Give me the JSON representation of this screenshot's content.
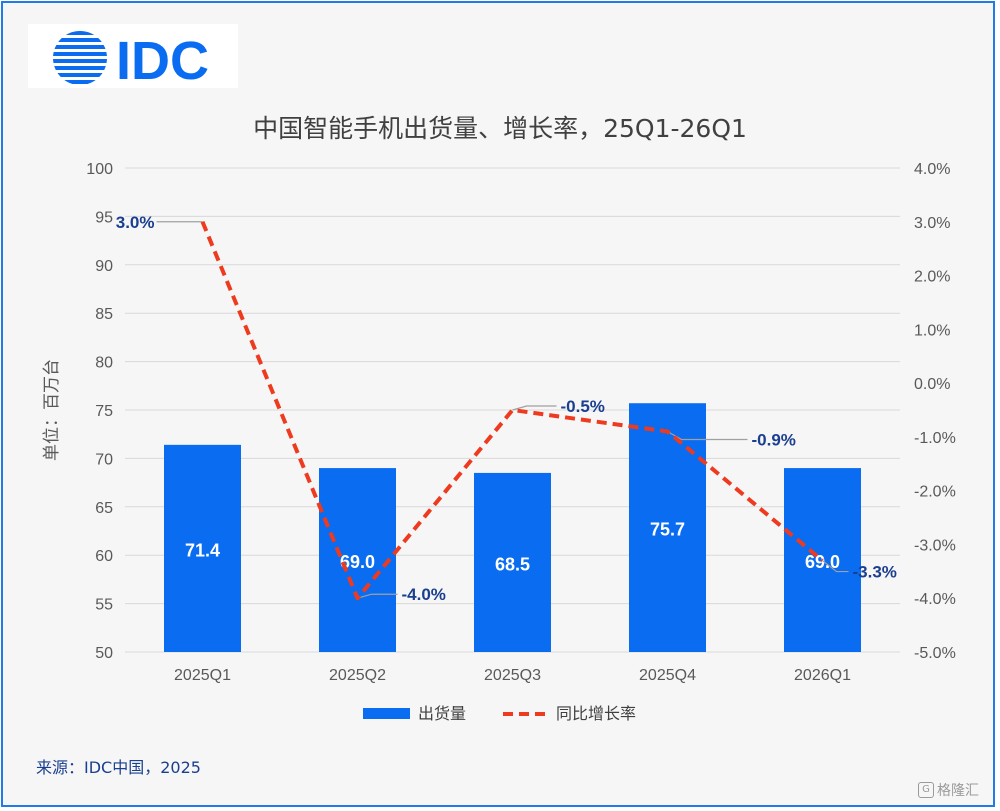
{
  "logo": {
    "text": "IDC"
  },
  "source": "来源：IDC中国，2025",
  "watermark": "格隆汇",
  "colors": {
    "bar": "#0a6cf0",
    "line": "#ee3a1e",
    "label_dark": "#1a3f8f",
    "grid": "#d9d9d9",
    "axis_text": "#595959",
    "frame": "#1f7be8"
  },
  "chart_data": {
    "type": "bar+line",
    "title": "中国智能手机出货量、增长率，25Q1-26Q1",
    "ylabel": "单位：百万台",
    "categories": [
      "2025Q1",
      "2025Q2",
      "2025Q3",
      "2025Q4",
      "2026Q1"
    ],
    "ylim": [
      50,
      100
    ],
    "y_ticks": [
      "100",
      "95",
      "90",
      "85",
      "80",
      "75",
      "70",
      "65",
      "60",
      "55",
      "50"
    ],
    "y2lim": [
      -5.0,
      4.0
    ],
    "y2_ticks": [
      "4.0%",
      "3.0%",
      "2.0%",
      "1.0%",
      "0.0%",
      "-1.0%",
      "-2.0%",
      "-3.0%",
      "-4.0%",
      "-5.0%"
    ],
    "series": [
      {
        "name": "出货量",
        "type": "bar",
        "values": [
          71.4,
          69.0,
          68.5,
          75.7,
          69.0
        ],
        "labels": [
          "71.4",
          "69.0",
          "68.5",
          "75.7",
          "69.0"
        ]
      },
      {
        "name": "同比增长率",
        "type": "line",
        "axis": "right",
        "values": [
          3.0,
          -4.0,
          -0.5,
          -0.9,
          -3.3
        ],
        "labels": [
          "3.0%",
          "-4.0%",
          "-0.5%",
          "-0.9%",
          "-3.3%"
        ]
      }
    ],
    "grid": true,
    "legend": "bottom-center"
  }
}
